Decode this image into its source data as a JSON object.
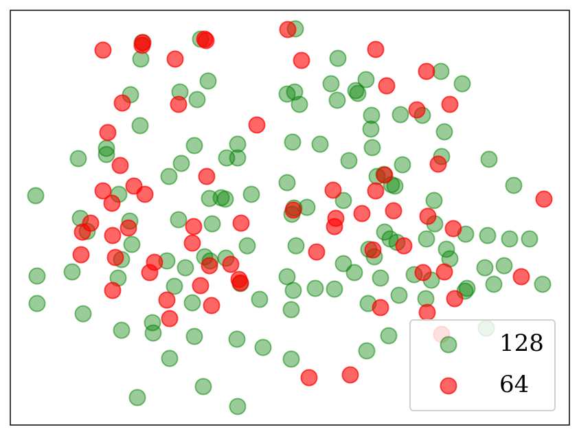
{
  "chart_data": {
    "type": "scatter",
    "xlim": [
      15,
      829
    ],
    "ylim": [
      619,
      15
    ],
    "legend": "lower right",
    "series": [
      {
        "name": "128",
        "color": "#008000",
        "opacity": 0.4,
        "x": [
          52,
          54,
          54,
          105,
          121,
          114,
          117,
          127,
          155,
          155,
          173,
          177,
          172,
          177,
          189,
          192,
          190,
          205,
          207,
          204,
          200,
          222,
          223,
          247,
          243,
          246,
          254,
          260,
          264,
          262,
          287,
          283,
          270,
          280,
          283,
          296,
          292,
          303,
          305,
          309,
          298,
          306,
          322,
          328,
          330,
          346,
          346,
          366,
          360,
          350,
          329,
          345,
          346,
          378,
          383,
          418,
          429,
          436,
          430,
          426,
          418,
          425,
          428,
          447,
          431,
          418,
          427,
          424,
          424,
          459,
          487,
          466,
          482,
          492,
          491,
          500,
          500,
          516,
          518,
          521,
          533,
          541,
          540,
          542,
          508,
          549,
          559,
          575,
          570,
          586,
          583,
          615,
          647,
          643,
          642,
          673,
          712,
          748,
          632,
          633,
          621,
          678,
          710,
          742,
          771,
          650,
          655,
          560,
          568,
          578,
          537,
          545,
          554,
          581,
          603,
          628,
          620,
          680,
          677,
          706,
          734,
          719,
          790,
          536,
          566,
          534,
          708
        ],
        "y": [
          285,
          402,
          442,
          396,
          457,
          231,
          318,
          337,
          216,
          225,
          283,
          378,
          405,
          481,
          322,
          356,
          138,
          86,
          62,
          183,
          579,
          470,
          485,
          522,
          380,
          257,
          417,
          320,
          238,
          134,
          145,
          212,
          390,
          441,
          490,
          563,
          57,
          118,
          289,
          326,
          374,
          380,
          288,
          290,
          230,
          210,
          230,
          283,
          358,
          413,
          376,
          494,
          592,
          436,
          506,
          137,
          134,
          152,
          42,
          207,
          266,
          312,
          303,
          302,
          358,
          403,
          423,
          451,
          523,
          420,
          421,
          210,
          122,
          85,
          146,
          292,
          384,
          397,
          132,
          136,
          116,
          168,
          188,
          215,
          234,
          257,
          254,
          271,
          269,
          240,
          167,
          168,
          192,
          228,
          104,
          122,
          232,
          270,
          292,
          326,
          348,
          341,
          343,
          348,
          348,
          363,
          377,
          338,
          348,
          353,
          363,
          374,
          405,
          430,
          400,
          408,
          435,
          420,
          424,
          390,
          387,
          414,
          414,
          442,
          489,
          511,
          478
        ]
      },
      {
        "name": "64",
        "color": "#ff0000",
        "opacity": 0.6,
        "x": [
          150,
          207,
          208,
          255,
          300,
          298,
          419,
          439,
          547,
          563,
          621,
          607,
          655,
          374,
          178,
          260,
          157,
          175,
          150,
          163,
          195,
          211,
          132,
          120,
          187,
          164,
          118,
          168,
          225,
          218,
          164,
          243,
          247,
          282,
          280,
          305,
          292,
          308,
          301,
          351,
          336,
          348,
          350,
          427,
          485,
          489,
          487,
          527,
          547,
          560,
          573,
          588,
          543,
          461,
          623,
          660,
          616,
          647,
          662,
          759,
          792,
          638,
          554,
          622,
          643,
          450,
          510
        ],
        "y": [
          73,
          66,
          62,
          86,
          59,
          57,
          43,
          88,
          72,
          125,
          104,
          160,
          152,
          182,
          150,
          152,
          193,
          241,
          278,
          296,
          271,
          283,
          325,
          338,
          332,
          343,
          371,
          375,
          382,
          397,
          423,
          437,
          464,
          330,
          354,
          387,
          416,
          445,
          257,
          325,
          385,
          407,
          412,
          306,
          277,
          318,
          330,
          311,
          278,
          255,
          307,
          358,
          364,
          367,
          315,
          333,
          397,
          396,
          435,
          403,
          290,
          239,
          448,
          455,
          487,
          550,
          546
        ]
      }
    ]
  }
}
